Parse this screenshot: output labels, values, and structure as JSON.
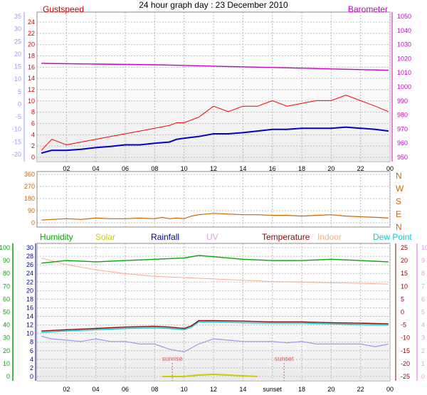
{
  "title": "24 hour graph day : 23 December 2010",
  "colors": {
    "gust": "#ff0000",
    "wind": "#0000cc",
    "temp_axis": "#9999ee",
    "baro": "#cc00cc",
    "dir": "#cc6600",
    "humidity": "#00aa00",
    "solar": "#cccc00",
    "rainfall": "#000099",
    "uv": "#ee99ee",
    "temperature": "#990000",
    "indoor": "#ffaa88",
    "dewpoint": "#00cccc",
    "grid": "#bbbbbb",
    "plot_bg": "#f4f4f4"
  },
  "chart_data": [
    {
      "type": "line",
      "panel": "wind",
      "title": "",
      "left_axis_label": "Gustspeed",
      "right_axis_label": "Barometer",
      "x_ticks": [
        "02",
        "04",
        "06",
        "08",
        "10",
        "12",
        "14",
        "16",
        "18",
        "20",
        "22",
        "00"
      ],
      "left_inner_ticks": [
        "24",
        "22",
        "20",
        "18",
        "16",
        "14",
        "12",
        "10",
        "8",
        "6",
        "4",
        "2",
        "0"
      ],
      "left_outer_ticks": [
        "35",
        "30",
        "25",
        "20",
        "15",
        "10",
        "5",
        "0",
        "-5",
        "-10",
        "-15",
        "-20"
      ],
      "right_ticks": [
        "1050",
        "1040",
        "1030",
        "1020",
        "1010",
        "1000",
        "990",
        "980",
        "970",
        "960",
        "950"
      ],
      "ylim_left": [
        0,
        25
      ],
      "ylim_baro": [
        950,
        1050
      ],
      "series": [
        {
          "name": "Gustspeed",
          "x": [
            0.3,
            1,
            2,
            3,
            4,
            5,
            6,
            7,
            8,
            9,
            9.5,
            10,
            11,
            12,
            13,
            14,
            15,
            16,
            17,
            18,
            19,
            20,
            21,
            22,
            23,
            23.9
          ],
          "values": [
            1,
            3,
            2,
            2.5,
            3,
            3.5,
            4,
            4.5,
            5,
            5.5,
            6,
            6,
            7,
            9,
            8,
            9,
            9,
            10,
            9,
            9.5,
            10,
            10,
            11,
            10,
            9,
            8
          ]
        },
        {
          "name": "Windspeed",
          "x": [
            0.3,
            1,
            2,
            3,
            4,
            5,
            6,
            7,
            8,
            9,
            9.5,
            10,
            11,
            12,
            13,
            14,
            15,
            16,
            17,
            18,
            19,
            20,
            21,
            22,
            23,
            23.9
          ],
          "values": [
            0.5,
            1,
            1,
            1.2,
            1.5,
            1.7,
            2,
            2,
            2.3,
            2.5,
            3,
            3.2,
            3.5,
            4,
            4,
            4.2,
            4.5,
            4.8,
            4.8,
            5,
            5,
            5,
            5.2,
            5,
            4.8,
            4.5
          ]
        },
        {
          "name": "Barometer",
          "x": [
            0.3,
            4,
            8,
            10,
            12,
            14,
            16,
            18,
            20,
            22,
            23.9
          ],
          "values": [
            1017,
            1016.5,
            1016,
            1015.5,
            1015,
            1014.5,
            1014,
            1013.5,
            1013,
            1012.5,
            1012
          ]
        }
      ]
    },
    {
      "type": "line",
      "panel": "direction",
      "right_ticks": [
        "N",
        "W",
        "S",
        "E",
        "N"
      ],
      "left_ticks": [
        "360",
        "270",
        "180",
        "90",
        "0"
      ],
      "ylim": [
        0,
        360
      ],
      "series": [
        {
          "name": "Direction",
          "x": [
            0.3,
            1,
            2,
            3,
            4,
            5,
            6,
            7,
            8,
            8.5,
            9,
            9.5,
            10,
            10.5,
            11,
            12,
            13,
            14,
            15,
            16,
            17,
            18,
            19,
            20,
            21,
            22,
            23,
            23.9
          ],
          "values": [
            20,
            25,
            30,
            25,
            35,
            30,
            30,
            35,
            30,
            40,
            30,
            35,
            30,
            50,
            60,
            70,
            65,
            60,
            60,
            55,
            55,
            50,
            55,
            60,
            50,
            45,
            40,
            35
          ]
        }
      ]
    },
    {
      "type": "line",
      "panel": "temperature",
      "legend": [
        "Humidity",
        "Solar",
        "Rainfall",
        "UV",
        "Temperature",
        "Indoor",
        "Dew Point"
      ],
      "annotations": [
        "sunrise",
        "sunset"
      ],
      "x_ticks": [
        "02",
        "04",
        "06",
        "08",
        "10",
        "12",
        "14",
        "sunset",
        "18",
        "20",
        "22",
        "00"
      ],
      "humidity_ticks": [
        "100",
        "90",
        "80",
        "70",
        "60",
        "50",
        "40",
        "30",
        "20",
        "10",
        "0"
      ],
      "rain_ticks": [
        "30",
        "28",
        "26",
        "24",
        "22",
        "20",
        "18",
        "16",
        "14",
        "12",
        "10",
        "8",
        "6",
        "4",
        "2",
        "0"
      ],
      "temp_ticks": [
        "25",
        "20",
        "15",
        "10",
        "5",
        "0",
        "-5",
        "-10",
        "-15",
        "-20",
        "-25"
      ],
      "uv_ticks": [
        "10",
        "9",
        "8",
        "7",
        "6",
        "5",
        "4",
        "3",
        "2",
        "1",
        "0"
      ],
      "ylim_temp": [
        -25,
        25
      ],
      "series": [
        {
          "name": "Humidity",
          "x": [
            0.3,
            2,
            4,
            6,
            8,
            10,
            11,
            12,
            14,
            16,
            18,
            20,
            22,
            23.9
          ],
          "values": [
            88,
            90,
            89,
            90,
            91,
            92,
            94,
            93,
            91,
            90,
            90,
            91,
            90,
            89
          ]
        },
        {
          "name": "Indoor",
          "x": [
            0.3,
            2,
            4,
            6,
            8,
            10,
            12,
            14,
            16,
            18,
            20,
            22,
            23.9
          ],
          "values": [
            21,
            18.5,
            16.5,
            15,
            14,
            13.5,
            13,
            12.5,
            12,
            11.8,
            11.5,
            11.3,
            11
          ]
        },
        {
          "name": "Temperature",
          "x": [
            0.3,
            2,
            4,
            6,
            8,
            9,
            10,
            10.5,
            11,
            12,
            14,
            16,
            18,
            20,
            22,
            23.9
          ],
          "values": [
            -7,
            -6.5,
            -6,
            -5.5,
            -5.2,
            -5.5,
            -6,
            -5,
            -3,
            -3,
            -3.2,
            -3.5,
            -3.5,
            -3.8,
            -4,
            -4.2
          ]
        },
        {
          "name": "Dew Point",
          "x": [
            0.3,
            2,
            4,
            6,
            8,
            9,
            10,
            10.5,
            11,
            12,
            14,
            16,
            18,
            20,
            22,
            23.9
          ],
          "values": [
            -7.5,
            -7,
            -6.5,
            -6,
            -5.8,
            -6,
            -6.5,
            -5.5,
            -3.5,
            -3.5,
            -3.8,
            -4,
            -4,
            -4.3,
            -4.5,
            -4.7
          ]
        },
        {
          "name": "Apparent",
          "x": [
            0.3,
            1,
            2,
            3,
            4,
            5,
            6,
            7,
            8,
            9,
            10,
            11,
            12,
            13,
            14,
            15,
            16,
            17,
            18,
            19,
            20,
            21,
            22,
            23,
            23.9
          ],
          "values": [
            -9,
            -10,
            -10.5,
            -11,
            -10,
            -11,
            -11,
            -12,
            -12,
            -14,
            -15,
            -12,
            -10,
            -10.5,
            -11,
            -11,
            -11,
            -11.5,
            -11,
            -12,
            -12,
            -12,
            -12,
            -13,
            -12
          ]
        },
        {
          "name": "Solar",
          "x": [
            8.5,
            10,
            11,
            12,
            13,
            14,
            15
          ],
          "values": [
            0,
            0,
            1,
            1.5,
            1,
            0.5,
            0
          ]
        }
      ]
    }
  ]
}
